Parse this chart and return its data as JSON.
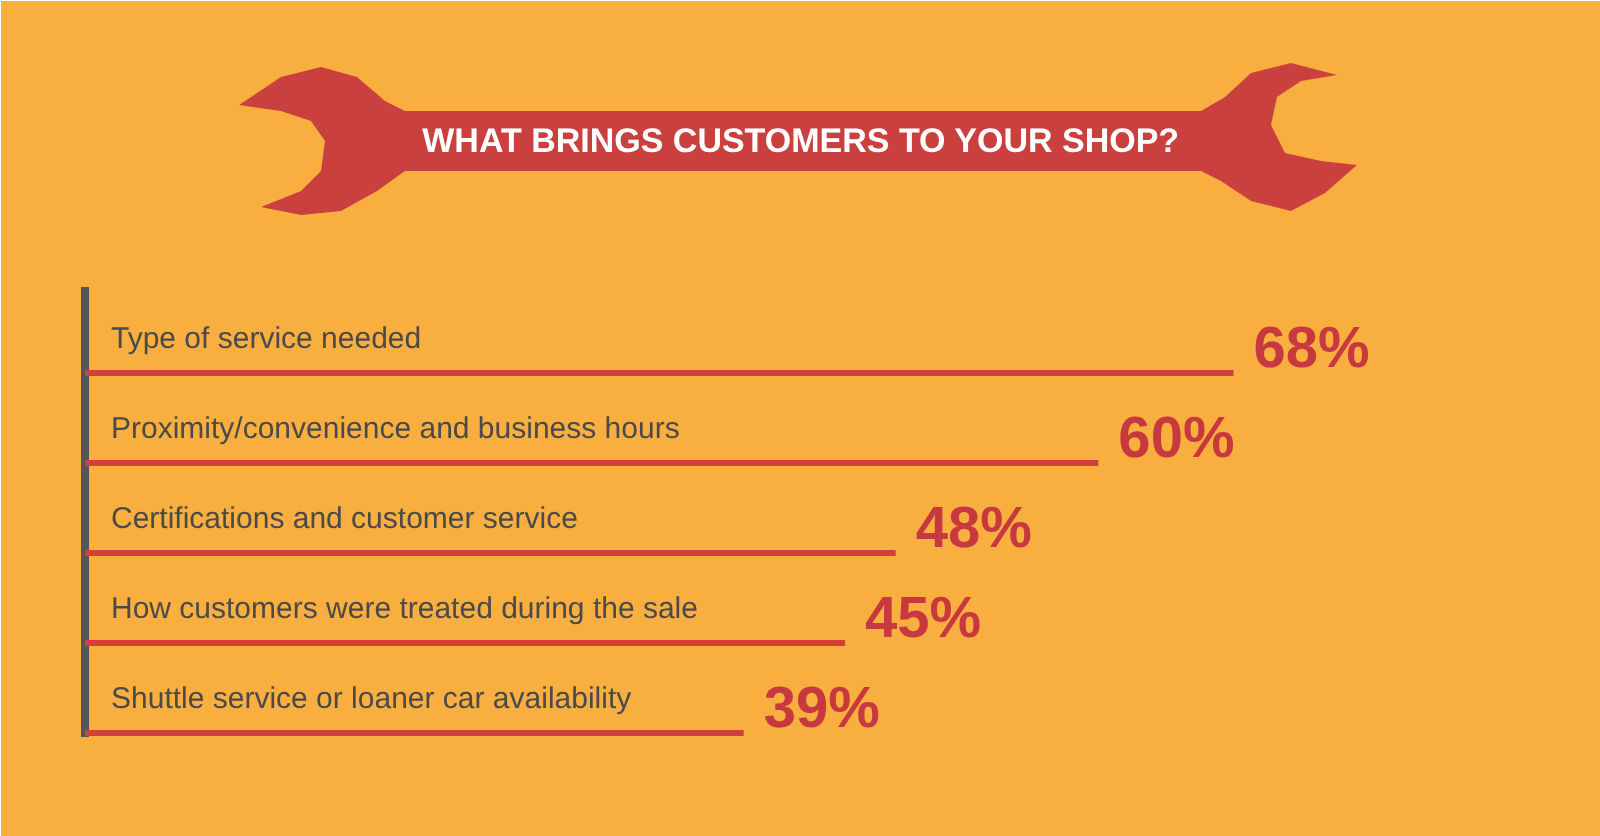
{
  "chart_data": {
    "type": "bar",
    "orientation": "horizontal",
    "title": "WHAT BRINGS CUSTOMERS TO YOUR SHOP?",
    "categories": [
      "Type of service needed",
      "Proximity/convenience and business hours",
      "Certifications and customer service",
      "How customers were treated during the sale",
      "Shuttle service or loaner car availability"
    ],
    "values": [
      68,
      60,
      48,
      45,
      39
    ],
    "value_labels": [
      "68%",
      "60%",
      "48%",
      "45%",
      "39%"
    ],
    "color": "#d3403b"
  }
}
